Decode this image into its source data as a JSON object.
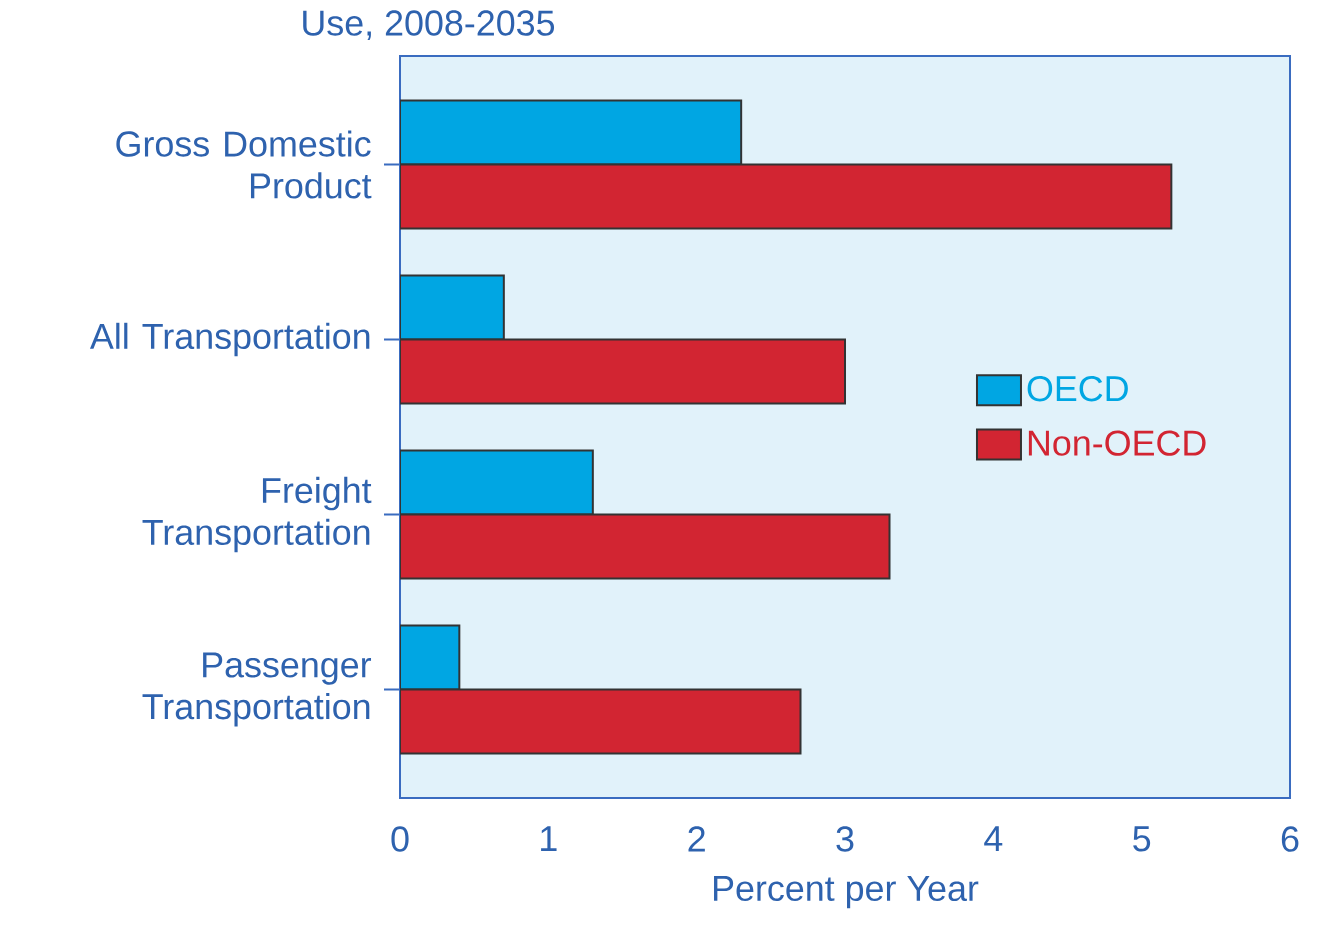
{
  "chart_data": {
    "type": "bar",
    "orientation": "horizontal",
    "title": "Use, 2008-2035",
    "xlabel": "Percent per Year",
    "categories": [
      "Gross Domestic Product",
      "All Transportation",
      "Freight Transportation",
      "Passenger Transportation"
    ],
    "series": [
      {
        "name": "OECD",
        "color": "#00a6e3",
        "values": [
          2.3,
          0.7,
          1.3,
          0.4
        ]
      },
      {
        "name": "Non-OECD",
        "color": "#d22532",
        "values": [
          5.2,
          3.0,
          3.3,
          2.7
        ]
      }
    ],
    "xlim": [
      0,
      6
    ],
    "xticks": [
      0,
      1,
      2,
      3,
      4,
      5,
      6
    ],
    "legend": "right",
    "grid": false
  }
}
